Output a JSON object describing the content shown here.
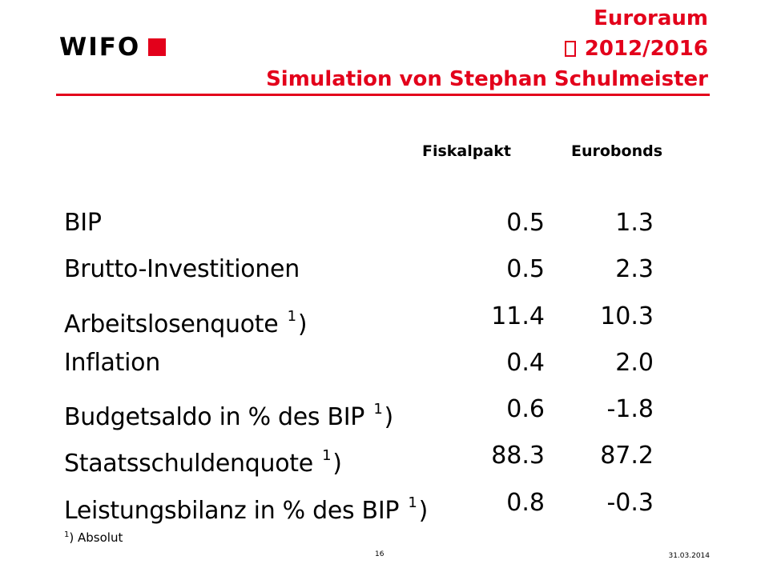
{
  "header": {
    "logo_text": "WIFO",
    "title_line1": "Euroraum",
    "title_line2": " 2012/2016",
    "title_line3": "Simulation von Stephan Schulmeister",
    "accent_color": "#e3001b"
  },
  "table": {
    "columns": [
      "Fiskalpakt",
      "Eurobonds"
    ],
    "rows": [
      {
        "label": "BIP",
        "sup": "",
        "suffix": "",
        "v1": "0.5",
        "v2": "1.3"
      },
      {
        "label": "Brutto-Investitionen",
        "sup": "",
        "suffix": "",
        "v1": "0.5",
        "v2": "2.3"
      },
      {
        "label": "Arbeitslosenquote ",
        "sup": "1",
        "suffix": ")",
        "v1": "11.4",
        "v2": "10.3"
      },
      {
        "label": "Inflation",
        "sup": "",
        "suffix": "",
        "v1": "0.4",
        "v2": "2.0"
      },
      {
        "label": "Budgetsaldo in % des BIP ",
        "sup": "1",
        "suffix": ")",
        "v1": "0.6",
        "v2": "-1.8"
      },
      {
        "label": "Staatsschuldenquote ",
        "sup": "1",
        "suffix": ")",
        "v1": "88.3",
        "v2": "87.2"
      },
      {
        "label": "Leistungsbilanz in % des BIP ",
        "sup": "1",
        "suffix": ")",
        "v1": "0.8",
        "v2": "-0.3"
      }
    ]
  },
  "footnote": {
    "sup": "1",
    "text": ")  Absolut"
  },
  "footer": {
    "page_number": "16",
    "date": "31.03.2014"
  }
}
